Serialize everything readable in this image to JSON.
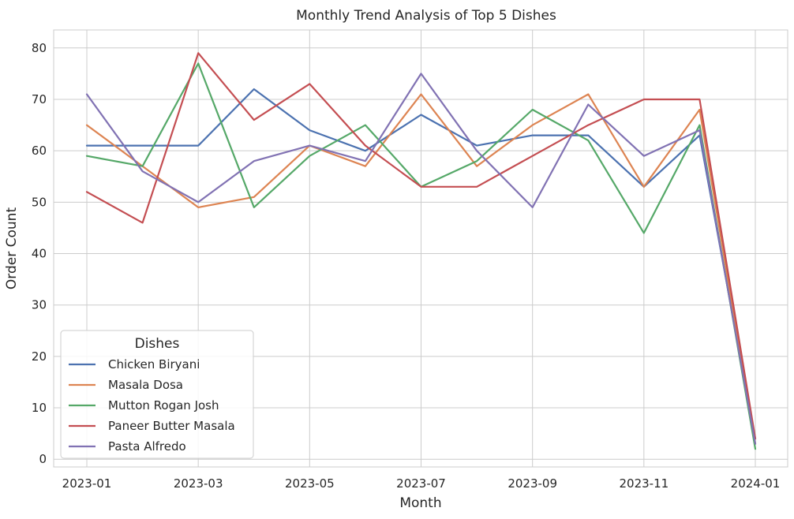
{
  "chart_data": {
    "type": "line",
    "title": "Monthly Trend Analysis of Top 5 Dishes",
    "xlabel": "Month",
    "ylabel": "Order Count",
    "x": [
      "2023-01",
      "2023-02",
      "2023-03",
      "2023-04",
      "2023-05",
      "2023-06",
      "2023-07",
      "2023-08",
      "2023-09",
      "2023-10",
      "2023-11",
      "2023-12",
      "2024-01"
    ],
    "x_ticks": [
      "2023-01",
      "2023-03",
      "2023-05",
      "2023-07",
      "2023-09",
      "2023-11",
      "2024-01"
    ],
    "y_ticks": [
      0,
      10,
      20,
      30,
      40,
      50,
      60,
      70,
      80
    ],
    "ylim": [
      -1.5,
      83.5
    ],
    "grid": true,
    "legend_title": "Dishes",
    "legend_position": "lower-left",
    "series": [
      {
        "name": "Chicken Biryani",
        "color": "#4c72b0",
        "values": [
          61,
          61,
          61,
          72,
          64,
          60,
          67,
          61,
          63,
          63,
          53,
          63,
          4
        ]
      },
      {
        "name": "Masala Dosa",
        "color": "#dd8452",
        "values": [
          65,
          57,
          49,
          51,
          61,
          57,
          71,
          57,
          65,
          71,
          53,
          68,
          3
        ]
      },
      {
        "name": "Mutton Rogan Josh",
        "color": "#55a868",
        "values": [
          59,
          57,
          77,
          49,
          59,
          65,
          53,
          58,
          68,
          62,
          44,
          65,
          2
        ]
      },
      {
        "name": "Paneer Butter Masala",
        "color": "#c44e52",
        "values": [
          52,
          46,
          79,
          66,
          73,
          61,
          53,
          53,
          59,
          65,
          70,
          70,
          4
        ]
      },
      {
        "name": "Pasta Alfredo",
        "color": "#8172b3",
        "values": [
          71,
          56,
          50,
          58,
          61,
          58,
          75,
          60,
          49,
          69,
          59,
          64,
          3
        ]
      }
    ]
  }
}
